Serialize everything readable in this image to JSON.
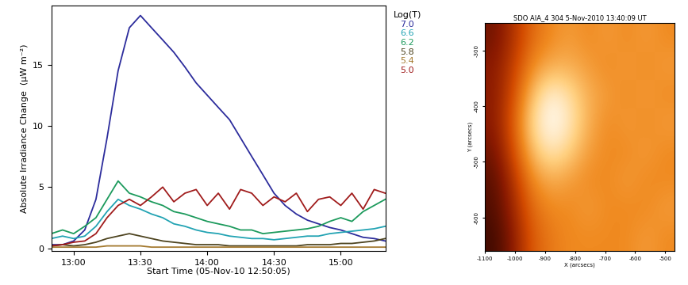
{
  "chart_data": [
    {
      "type": "line",
      "x_label": "Start Time (05-Nov-10 12:50:05)",
      "y_label": "Absolute Irradiance Change  (μW m⁻²)",
      "legend_title": "Log(T)",
      "x": [
        12.833,
        12.917,
        13.0,
        13.083,
        13.167,
        13.25,
        13.333,
        13.417,
        13.5,
        13.583,
        13.667,
        13.75,
        13.833,
        13.917,
        14.0,
        14.083,
        14.167,
        14.25,
        14.333,
        14.417,
        14.5,
        14.583,
        14.667,
        14.75,
        14.833,
        14.917,
        15.0,
        15.083,
        15.167,
        15.25,
        15.333
      ],
      "xlim": [
        12.835,
        15.333
      ],
      "xticks": [
        {
          "value": 13.0,
          "label": "13:00"
        },
        {
          "value": 13.5,
          "label": "13:30"
        },
        {
          "value": 14.0,
          "label": "14:00"
        },
        {
          "value": 14.5,
          "label": "14:30"
        },
        {
          "value": 15.0,
          "label": "15:00"
        }
      ],
      "ylim": [
        -0.2,
        19.8
      ],
      "yticks": [
        0,
        5,
        10,
        15
      ],
      "series": [
        {
          "name": "7.0",
          "color": "#2c2c9c",
          "values": [
            0.3,
            0.3,
            0.6,
            1.5,
            4.0,
            9.0,
            14.5,
            18.0,
            19.0,
            18.0,
            17.0,
            16.0,
            14.8,
            13.5,
            12.5,
            11.5,
            10.5,
            9.0,
            7.5,
            6.0,
            4.5,
            3.5,
            2.8,
            2.3,
            2.0,
            1.7,
            1.5,
            1.2,
            0.9,
            0.8,
            0.6
          ]
        },
        {
          "name": "6.6",
          "color": "#22a3b3",
          "values": [
            0.8,
            1.0,
            0.8,
            1.0,
            1.8,
            3.0,
            4.0,
            3.5,
            3.2,
            2.8,
            2.5,
            2.0,
            1.8,
            1.5,
            1.3,
            1.2,
            1.0,
            0.9,
            0.8,
            0.8,
            0.7,
            0.8,
            0.9,
            1.0,
            1.0,
            1.2,
            1.3,
            1.4,
            1.5,
            1.6,
            1.8
          ]
        },
        {
          "name": "6.2",
          "color": "#1c9a5c",
          "values": [
            1.2,
            1.5,
            1.2,
            1.8,
            2.5,
            4.0,
            5.5,
            4.5,
            4.2,
            3.8,
            3.5,
            3.0,
            2.8,
            2.5,
            2.2,
            2.0,
            1.8,
            1.5,
            1.5,
            1.2,
            1.3,
            1.4,
            1.5,
            1.6,
            1.8,
            2.2,
            2.5,
            2.2,
            3.0,
            3.5,
            4.0
          ]
        },
        {
          "name": "5.8",
          "color": "#4e4420",
          "values": [
            0.2,
            0.3,
            0.2,
            0.3,
            0.5,
            0.8,
            1.0,
            1.2,
            1.0,
            0.8,
            0.6,
            0.5,
            0.4,
            0.3,
            0.3,
            0.3,
            0.2,
            0.2,
            0.2,
            0.2,
            0.2,
            0.2,
            0.2,
            0.3,
            0.3,
            0.3,
            0.4,
            0.4,
            0.5,
            0.6,
            0.8
          ]
        },
        {
          "name": "5.4",
          "color": "#a47a30",
          "values": [
            0.1,
            0.1,
            0.1,
            0.1,
            0.1,
            0.2,
            0.2,
            0.2,
            0.2,
            0.1,
            0.1,
            0.1,
            0.1,
            0.1,
            0.1,
            0.1,
            0.1,
            0.1,
            0.1,
            0.1,
            0.1,
            0.1,
            0.1,
            0.1,
            0.1,
            0.1,
            0.1,
            0.1,
            0.1,
            0.1,
            0.1
          ]
        },
        {
          "name": "5.0",
          "color": "#a01c1c",
          "values": [
            0.2,
            0.3,
            0.5,
            0.6,
            1.2,
            2.5,
            3.5,
            4.0,
            3.5,
            4.2,
            5.0,
            3.8,
            4.5,
            4.8,
            3.5,
            4.5,
            3.2,
            4.8,
            4.5,
            3.5,
            4.2,
            3.8,
            4.5,
            3.0,
            4.0,
            4.2,
            3.5,
            4.5,
            3.2,
            4.8,
            4.5
          ]
        }
      ]
    },
    {
      "type": "heatmap",
      "title": "SDO AIA_4 304 5-Nov-2010 13:40:09 UT",
      "x_label": "X (arcsecs)",
      "y_label": "Y (arcsecs)",
      "xlim": [
        -1100,
        -470
      ],
      "ylim": [
        -660,
        -250
      ],
      "xticks": [
        -1100,
        -1000,
        -900,
        -800,
        -700,
        -600,
        -500
      ],
      "yticks": [
        -300,
        -400,
        -500,
        -600
      ],
      "cells": [
        [
          0.15,
          0.3,
          0.5,
          0.6,
          0.65,
          0.6,
          0.65,
          0.6,
          0.65,
          0.6
        ],
        [
          0.2,
          0.35,
          0.6,
          0.7,
          0.7,
          0.65,
          0.6,
          0.65,
          0.6,
          0.65
        ],
        [
          0.2,
          0.4,
          0.75,
          0.95,
          0.85,
          0.7,
          0.65,
          0.6,
          0.65,
          0.6
        ],
        [
          0.2,
          0.45,
          0.85,
          1.0,
          0.9,
          0.7,
          0.6,
          0.65,
          0.6,
          0.65
        ],
        [
          0.15,
          0.4,
          0.75,
          0.9,
          0.8,
          0.65,
          0.6,
          0.6,
          0.65,
          0.6
        ],
        [
          0.1,
          0.3,
          0.6,
          0.7,
          0.65,
          0.6,
          0.6,
          0.65,
          0.6,
          0.6
        ],
        [
          0.08,
          0.25,
          0.5,
          0.6,
          0.6,
          0.65,
          0.6,
          0.6,
          0.6,
          0.65
        ],
        [
          0.05,
          0.2,
          0.45,
          0.55,
          0.6,
          0.6,
          0.6,
          0.6,
          0.65,
          0.6
        ]
      ]
    }
  ]
}
